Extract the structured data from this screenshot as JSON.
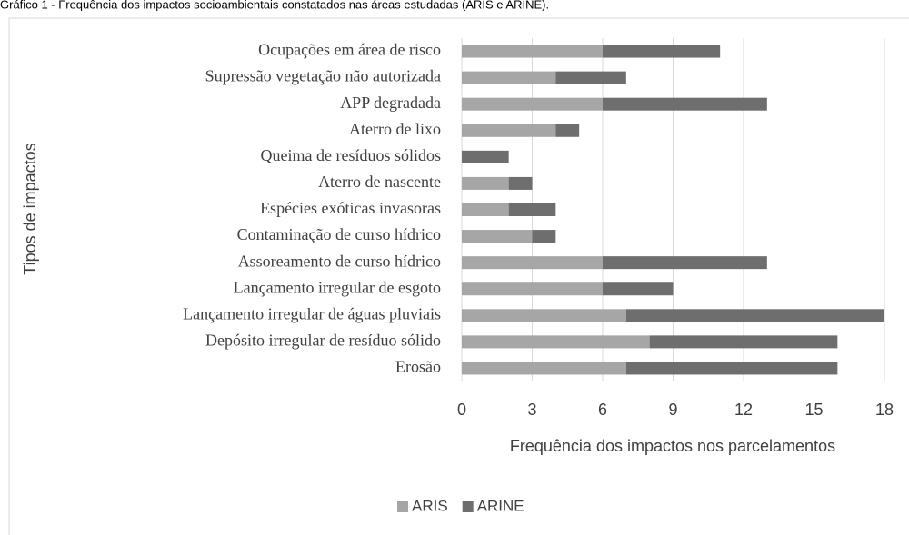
{
  "chart_data": {
    "type": "stacked_barh",
    "title": "Gráfico 1 - Frequência dos impactos socioambientais constatados nas áreas estudadas (ARIS e ARINE).",
    "ylabel": "Tipos de impactos",
    "xlabel": "Frequência dos impactos nos parcelamentos",
    "categories": [
      "Ocupações em área de risco",
      "Supressão vegetação não autorizada",
      "APP degradada",
      "Aterro de lixo",
      "Queima de resíduos sólidos",
      "Aterro de nascente",
      "Espécies exóticas invasoras",
      "Contaminação de curso hídrico",
      "Assoreamento de curso hídrico",
      "Lançamento irregular de esgoto",
      "Lançamento irregular de águas pluviais",
      "Depósito irregular de resíduo sólido",
      "Erosão"
    ],
    "series": [
      {
        "name": "ARIS",
        "color": "#a6a6a6",
        "values": [
          6,
          4,
          6,
          4,
          0,
          2,
          2,
          3,
          6,
          6,
          7,
          8,
          7
        ]
      },
      {
        "name": "ARINE",
        "color": "#6e6e6e",
        "values": [
          5,
          3,
          7,
          1,
          2,
          1,
          2,
          1,
          7,
          3,
          11,
          8,
          9
        ]
      }
    ],
    "xlim": [
      0,
      18
    ],
    "xticks": [
      0,
      3,
      6,
      9,
      12,
      15,
      18
    ],
    "grid": true,
    "legend": "bottom"
  }
}
